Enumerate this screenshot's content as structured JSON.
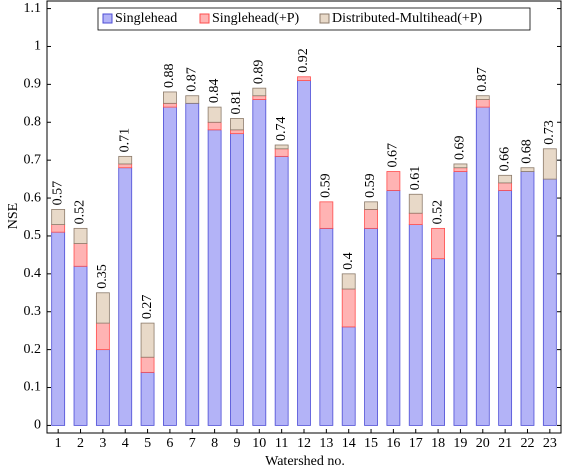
{
  "chart_data": {
    "type": "stacked_bar",
    "x_label": "Watershed no.",
    "y_label": "NSE",
    "categories": [
      "1",
      "2",
      "3",
      "4",
      "5",
      "6",
      "7",
      "8",
      "9",
      "10",
      "11",
      "12",
      "13",
      "14",
      "15",
      "16",
      "17",
      "18",
      "19",
      "20",
      "21",
      "22",
      "23"
    ],
    "series": [
      {
        "name": "Singlehead",
        "color": "#b3b3f7",
        "stroke": "#4d4dd6",
        "values": [
          0.51,
          0.42,
          0.2,
          0.68,
          0.14,
          0.84,
          0.85,
          0.78,
          0.77,
          0.86,
          0.71,
          0.91,
          0.52,
          0.26,
          0.52,
          0.62,
          0.53,
          0.44,
          0.67,
          0.84,
          0.62,
          0.67,
          0.65
        ]
      },
      {
        "name": "Singlehead(+P)",
        "color": "#ffb3b3",
        "stroke": "#ff4d4d",
        "values": [
          0.02,
          0.06,
          0.07,
          0.01,
          0.04,
          0.01,
          0,
          0.02,
          0.01,
          0.01,
          0.02,
          0.01,
          0.07,
          0.1,
          0.05,
          0.05,
          0.03,
          0.08,
          0.01,
          0.02,
          0.02,
          0,
          0
        ]
      },
      {
        "name": "Distributed-Multihead(+P)",
        "color": "#e8d9c8",
        "stroke": "#8c7b6b",
        "values": [
          0.04,
          0.04,
          0.08,
          0.02,
          0.09,
          0.03,
          0.02,
          0.04,
          0.03,
          0.02,
          0.01,
          0,
          0,
          0.04,
          0.02,
          0,
          0.05,
          0,
          0.01,
          0.01,
          0.02,
          0.01,
          0.08
        ]
      }
    ],
    "totals": [
      0.57,
      0.52,
      0.35,
      0.71,
      0.27,
      0.88,
      0.87,
      0.84,
      0.81,
      0.89,
      0.74,
      0.92,
      0.59,
      0.4,
      0.59,
      0.67,
      0.61,
      0.52,
      0.69,
      0.87,
      0.66,
      0.68,
      0.73
    ],
    "ylim": [
      -0.02,
      1.12
    ],
    "yticks": [
      0,
      0.1,
      0.2,
      0.3,
      0.4,
      0.5,
      0.6,
      0.7,
      0.8,
      0.9,
      1,
      1.1
    ],
    "legend": "top"
  }
}
